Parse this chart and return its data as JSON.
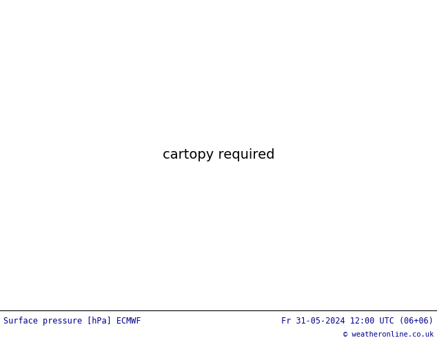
{
  "title_left": "Surface pressure [hPa] ECMWF",
  "title_right": "Fr 31-05-2024 12:00 UTC (06+06)",
  "copyright": "© weatheronline.co.uk",
  "land_color": [
    0.749,
    0.898,
    0.627
  ],
  "sea_color": [
    0.812,
    0.812,
    0.812
  ],
  "border_color": [
    0.3,
    0.3,
    0.3
  ],
  "contour_blue": "#0000cc",
  "contour_red": "#cc0000",
  "contour_black": "#000000",
  "footer_text_color": "#00008B",
  "figsize": [
    6.34,
    4.9
  ],
  "dpi": 100,
  "lon_min": -10.0,
  "lon_max": 42.0,
  "lat_min": 25.0,
  "lat_max": 57.0
}
